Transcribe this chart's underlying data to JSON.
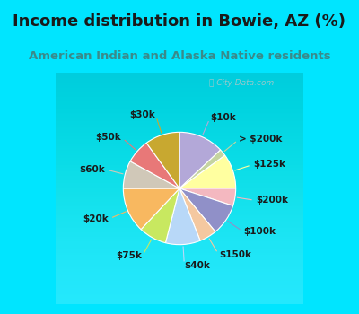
{
  "title": "Income distribution in Bowie, AZ (%)",
  "subtitle": "American Indian and Alaska Native residents",
  "watermark": "ⓘ City-Data.com",
  "background_color": "#00e5ff",
  "chart_bg_start": "#e8f5ee",
  "chart_bg_end": "#f5faf8",
  "slices": [
    {
      "label": "$10k",
      "value": 13,
      "color": "#b3a8d8"
    },
    {
      "label": "> $200k",
      "value": 2,
      "color": "#c5d4a0"
    },
    {
      "label": "$125k",
      "value": 10,
      "color": "#ffffa0"
    },
    {
      "label": "$200k",
      "value": 5,
      "color": "#f4b8c0"
    },
    {
      "label": "$100k",
      "value": 9,
      "color": "#9090c8"
    },
    {
      "label": "$150k",
      "value": 5,
      "color": "#f4c8a0"
    },
    {
      "label": "$40k",
      "value": 10,
      "color": "#b8d8f8"
    },
    {
      "label": "$75k",
      "value": 8,
      "color": "#c8e860"
    },
    {
      "label": "$20k",
      "value": 13,
      "color": "#f8b860"
    },
    {
      "label": "$60k",
      "value": 8,
      "color": "#d0c8b8"
    },
    {
      "label": "$50k",
      "value": 7,
      "color": "#e87878"
    },
    {
      "label": "$30k",
      "value": 10,
      "color": "#c8a830"
    }
  ],
  "title_fontsize": 13,
  "subtitle_fontsize": 9.5,
  "label_fontsize": 7.5,
  "title_color": "#1a1a1a",
  "subtitle_color": "#3a8a8a",
  "watermark_color": "#b0c8c8",
  "label_color": "#1a1a1a"
}
